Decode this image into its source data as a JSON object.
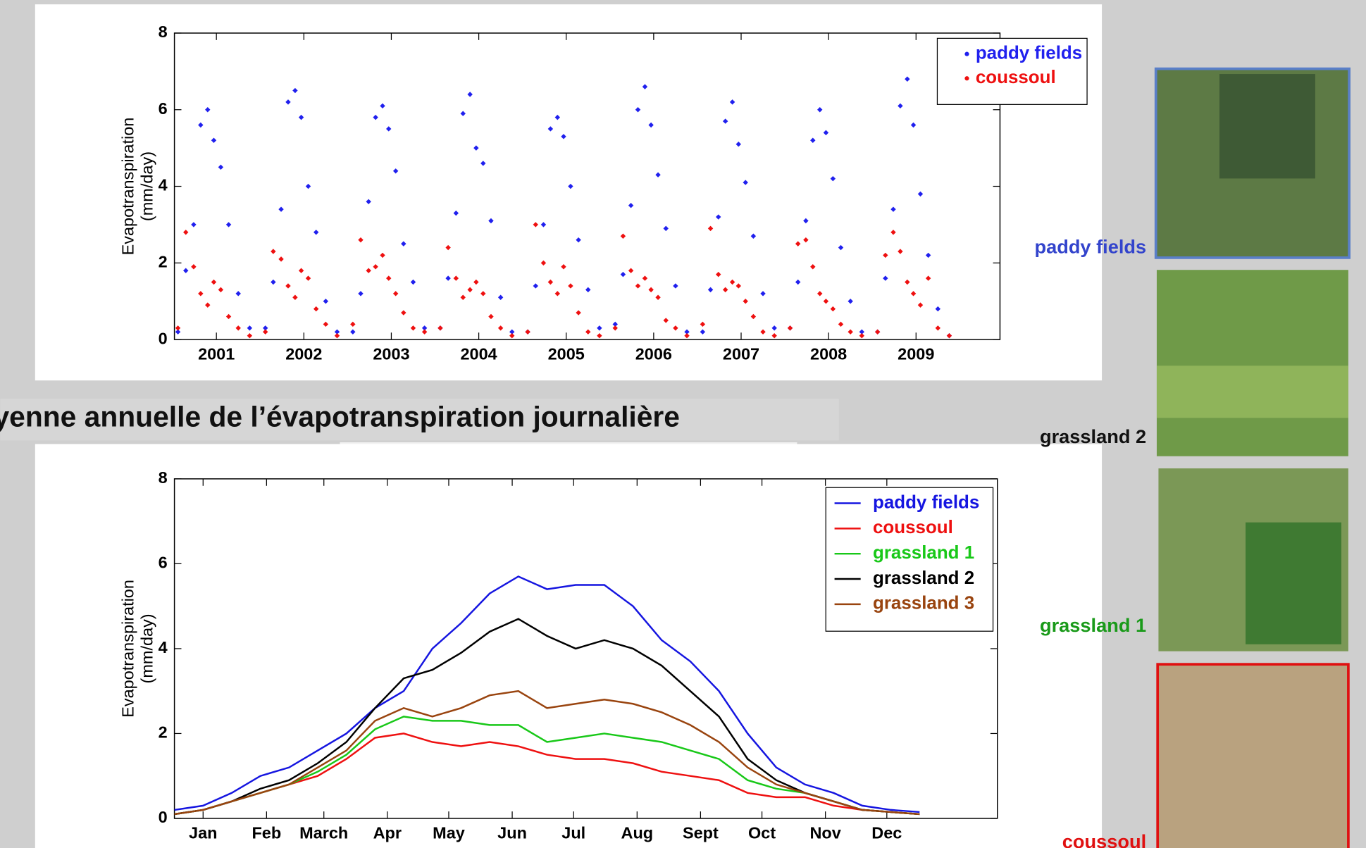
{
  "heading": "yenne annuelle de l’évapotranspiration journalière",
  "images": [
    {
      "label": "paddy fields",
      "color": "#3344cc"
    },
    {
      "label": "grassland 2",
      "color": "#111111"
    },
    {
      "label": "grassland 1",
      "color": "#1a9a1a"
    },
    {
      "label": "coussoul",
      "color": "#e01010"
    }
  ],
  "chart_data": [
    {
      "type": "scatter",
      "ylabel": [
        "Evapotranspiration",
        "(mm/day)"
      ],
      "legend": "upper right",
      "xlim": [
        2001.02,
        2010.46
      ],
      "ylim": [
        0,
        8
      ],
      "yticks": [
        0,
        2,
        4,
        6,
        8
      ],
      "xticks": [
        {
          "value": 2001.5,
          "label": "2001"
        },
        {
          "value": 2002.5,
          "label": "2002"
        },
        {
          "value": 2003.5,
          "label": "2003"
        },
        {
          "value": 2004.5,
          "label": "2004"
        },
        {
          "value": 2005.5,
          "label": "2005"
        },
        {
          "value": 2006.5,
          "label": "2006"
        },
        {
          "value": 2007.5,
          "label": "2007"
        },
        {
          "value": 2008.5,
          "label": "2008"
        },
        {
          "value": 2009.5,
          "label": "2009"
        }
      ],
      "x": [
        2001.06,
        2001.15,
        2001.24,
        2001.32,
        2001.4,
        2001.47,
        2001.55,
        2001.64,
        2001.75,
        2001.88,
        2002.06,
        2002.15,
        2002.24,
        2002.32,
        2002.4,
        2002.47,
        2002.55,
        2002.64,
        2002.75,
        2002.88,
        2003.06,
        2003.15,
        2003.24,
        2003.32,
        2003.4,
        2003.47,
        2003.55,
        2003.64,
        2003.75,
        2003.88,
        2004.06,
        2004.15,
        2004.24,
        2004.32,
        2004.4,
        2004.47,
        2004.55,
        2004.64,
        2004.75,
        2004.88,
        2005.06,
        2005.15,
        2005.24,
        2005.32,
        2005.4,
        2005.47,
        2005.55,
        2005.64,
        2005.75,
        2005.88,
        2006.06,
        2006.15,
        2006.24,
        2006.32,
        2006.4,
        2006.47,
        2006.55,
        2006.64,
        2006.75,
        2006.88,
        2007.06,
        2007.15,
        2007.24,
        2007.32,
        2007.4,
        2007.47,
        2007.55,
        2007.64,
        2007.75,
        2007.88,
        2008.06,
        2008.15,
        2008.24,
        2008.32,
        2008.4,
        2008.47,
        2008.55,
        2008.64,
        2008.75,
        2008.88,
        2009.06,
        2009.15,
        2009.24,
        2009.32,
        2009.4,
        2009.47,
        2009.55,
        2009.64,
        2009.75,
        2009.88
      ],
      "series": [
        {
          "name": "paddy fields",
          "color": "#2020ee",
          "values": [
            0.2,
            1.8,
            3.0,
            5.6,
            6.0,
            5.2,
            4.5,
            3.0,
            1.2,
            0.3,
            0.3,
            1.5,
            3.4,
            6.2,
            6.5,
            5.8,
            4.0,
            2.8,
            1.0,
            0.2,
            0.2,
            1.2,
            3.6,
            5.8,
            6.1,
            5.5,
            4.4,
            2.5,
            1.5,
            0.3,
            0.3,
            1.6,
            3.3,
            5.9,
            6.4,
            5.0,
            4.6,
            3.1,
            1.1,
            0.2,
            0.2,
            1.4,
            3.0,
            5.5,
            5.8,
            5.3,
            4.0,
            2.6,
            1.3,
            0.3,
            0.4,
            1.7,
            3.5,
            6.0,
            6.6,
            5.6,
            4.3,
            2.9,
            1.4,
            0.2,
            0.2,
            1.3,
            3.2,
            5.7,
            6.2,
            5.1,
            4.1,
            2.7,
            1.2,
            0.3,
            0.3,
            1.5,
            3.1,
            5.2,
            6.0,
            5.4,
            4.2,
            2.4,
            1.0,
            0.2,
            0.2,
            1.6,
            3.4,
            6.1,
            6.8,
            5.6,
            3.8,
            2.2,
            0.8,
            0.1
          ]
        },
        {
          "name": "coussoul",
          "color": "#ee1010",
          "values": [
            0.3,
            2.8,
            1.9,
            1.2,
            0.9,
            1.5,
            1.3,
            0.6,
            0.3,
            0.1,
            0.2,
            2.3,
            2.1,
            1.4,
            1.1,
            1.8,
            1.6,
            0.8,
            0.4,
            0.1,
            0.4,
            2.6,
            1.8,
            1.9,
            2.2,
            1.6,
            1.2,
            0.7,
            0.3,
            0.2,
            0.3,
            2.4,
            1.6,
            1.1,
            1.3,
            1.5,
            1.2,
            0.6,
            0.3,
            0.1,
            0.2,
            3.0,
            2.0,
            1.5,
            1.2,
            1.9,
            1.4,
            0.7,
            0.2,
            0.1,
            0.3,
            2.7,
            1.8,
            1.4,
            1.6,
            1.3,
            1.1,
            0.5,
            0.3,
            0.1,
            0.4,
            2.9,
            1.7,
            1.3,
            1.5,
            1.4,
            1.0,
            0.6,
            0.2,
            0.1,
            0.3,
            2.5,
            2.6,
            1.9,
            1.2,
            1.0,
            0.8,
            0.4,
            0.2,
            0.1,
            0.2,
            2.2,
            2.8,
            2.3,
            1.5,
            1.2,
            0.9,
            1.6,
            0.3,
            0.1
          ]
        }
      ]
    },
    {
      "type": "line",
      "ylabel": [
        "Evapotranspiration",
        "(mm/day)"
      ],
      "legend": "upper right",
      "xlim": [
        1,
        403
      ],
      "ylim": [
        0,
        8
      ],
      "yticks": [
        0,
        2,
        4,
        6,
        8
      ],
      "xticks": [
        {
          "value": 15,
          "label": "Jan"
        },
        {
          "value": 46,
          "label": "Feb"
        },
        {
          "value": 74,
          "label": "March"
        },
        {
          "value": 105,
          "label": "Apr"
        },
        {
          "value": 135,
          "label": "May"
        },
        {
          "value": 166,
          "label": "Jun"
        },
        {
          "value": 196,
          "label": "Jul"
        },
        {
          "value": 227,
          "label": "Aug"
        },
        {
          "value": 258,
          "label": "Sept"
        },
        {
          "value": 288,
          "label": "Oct"
        },
        {
          "value": 319,
          "label": "Nov"
        },
        {
          "value": 349,
          "label": "Dec"
        }
      ],
      "x": [
        1,
        15,
        29,
        43,
        57,
        71,
        85,
        99,
        113,
        127,
        141,
        155,
        169,
        183,
        197,
        211,
        225,
        239,
        253,
        267,
        281,
        295,
        309,
        323,
        337,
        351,
        365
      ],
      "series": [
        {
          "name": "paddy fields",
          "color": "#1515e0",
          "values": [
            0.2,
            0.3,
            0.6,
            1.0,
            1.2,
            1.6,
            2.0,
            2.6,
            3.0,
            4.0,
            4.6,
            5.3,
            5.7,
            5.4,
            5.5,
            5.5,
            5.0,
            4.2,
            3.7,
            3.0,
            2.0,
            1.2,
            0.8,
            0.6,
            0.3,
            0.2,
            0.15
          ]
        },
        {
          "name": "coussoul",
          "color": "#ee1010",
          "values": [
            0.1,
            0.2,
            0.4,
            0.6,
            0.8,
            1.0,
            1.4,
            1.9,
            2.0,
            1.8,
            1.7,
            1.8,
            1.7,
            1.5,
            1.4,
            1.4,
            1.3,
            1.1,
            1.0,
            0.9,
            0.6,
            0.5,
            0.5,
            0.3,
            0.2,
            0.15,
            0.1
          ]
        },
        {
          "name": "grassland 1",
          "color": "#18c818",
          "values": [
            0.1,
            0.2,
            0.4,
            0.6,
            0.8,
            1.1,
            1.5,
            2.1,
            2.4,
            2.3,
            2.3,
            2.2,
            2.2,
            1.8,
            1.9,
            2.0,
            1.9,
            1.8,
            1.6,
            1.4,
            0.9,
            0.7,
            0.6,
            0.4,
            0.2,
            0.15,
            0.1
          ]
        },
        {
          "name": "grassland 2",
          "color": "#000000",
          "values": [
            0.1,
            0.2,
            0.4,
            0.7,
            0.9,
            1.3,
            1.8,
            2.6,
            3.3,
            3.5,
            3.9,
            4.4,
            4.7,
            4.3,
            4.0,
            4.2,
            4.0,
            3.6,
            3.0,
            2.4,
            1.4,
            0.9,
            0.6,
            0.4,
            0.2,
            0.15,
            0.1
          ]
        },
        {
          "name": "grassland 3",
          "color": "#99440f",
          "values": [
            0.1,
            0.2,
            0.4,
            0.6,
            0.8,
            1.2,
            1.6,
            2.3,
            2.6,
            2.4,
            2.6,
            2.9,
            3.0,
            2.6,
            2.7,
            2.8,
            2.7,
            2.5,
            2.2,
            1.8,
            1.2,
            0.8,
            0.6,
            0.4,
            0.2,
            0.15,
            0.1
          ]
        }
      ]
    }
  ]
}
